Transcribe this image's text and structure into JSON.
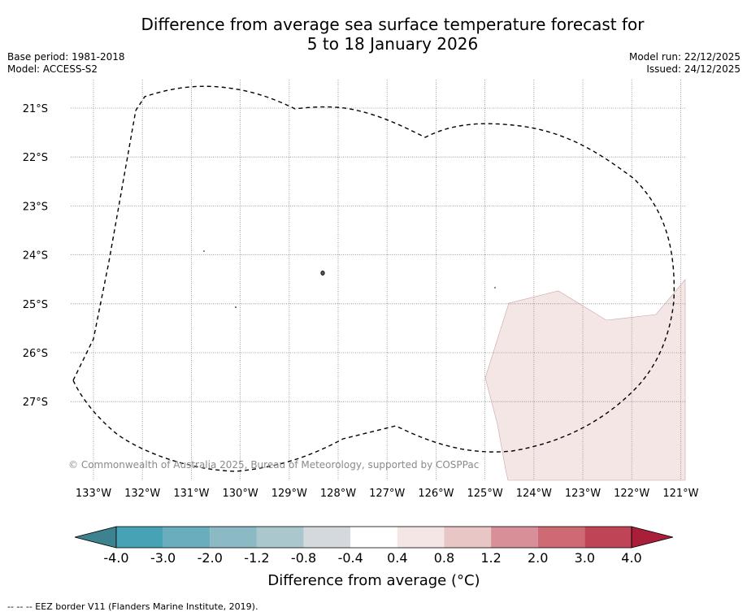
{
  "header": {
    "title_line1": "Difference from average sea surface temperature forecast for",
    "title_line2": "5 to 18 January 2026",
    "base_period": "Base period: 1981-2018",
    "model": "Model: ACCESS-S2",
    "model_run": "Model run: 22/12/2025",
    "issued": "Issued: 24/12/2025"
  },
  "map": {
    "lat_labels": [
      "21°S",
      "22°S",
      "23°S",
      "24°S",
      "25°S",
      "26°S",
      "27°S"
    ],
    "lon_labels": [
      "133°W",
      "132°W",
      "131°W",
      "130°W",
      "129°W",
      "128°W",
      "127°W",
      "126°W",
      "125°W",
      "124°W",
      "123°W",
      "122°W",
      "121°W"
    ],
    "copyright": "© Commonwealth of Australia 2025, Bureau of Meteorology, supported by COSPPac",
    "anomaly_region_category": "0.4 to 0.8",
    "colors": {
      "land": "#ffffff",
      "anomaly_fill": "#f5e6e6",
      "gridline": "#888888",
      "eez_border": "#000000"
    }
  },
  "colorbar": {
    "labels": [
      "-4.0",
      "-3.0",
      "-2.0",
      "-1.2",
      "-0.8",
      "-0.4",
      "0.4",
      "0.8",
      "1.2",
      "2.0",
      "3.0",
      "4.0"
    ],
    "colors": [
      "#47a2b5",
      "#6aaebd",
      "#8bb9c4",
      "#a9c7cc",
      "#d3d9dc",
      "#ffffff",
      "#f5e6e6",
      "#e9c6c6",
      "#d98f97",
      "#cd6a74",
      "#bf4556"
    ],
    "under_color": "#3e8290",
    "over_color": "#a91f3a",
    "title": "Difference from average (°C)"
  },
  "footnote": "-- -- -- EEZ border V11 (Flanders Marine Institute, 2019)."
}
